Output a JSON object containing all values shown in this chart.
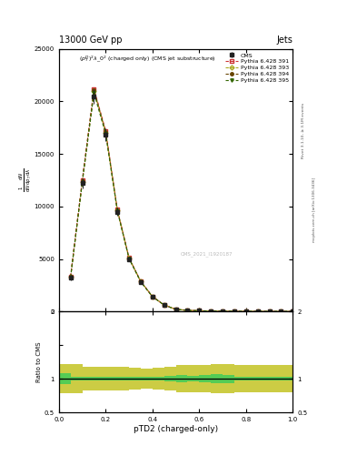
{
  "title_top": "13000 GeV pp",
  "title_right": "Jets",
  "plot_title": "$(p_T^D)^2\\lambda\\_0^2$ (charged only) (CMS jet substructure)",
  "watermark": "CMS_2021_I1920187",
  "rivet_label": "Rivet 3.1.10, ≥ 3.1M events",
  "mcplots_label": "mcplots.cern.ch [arXiv:1306.3436]",
  "xlabel": "pTD2 (charged-only)",
  "xlim": [
    0,
    1.0
  ],
  "ylim_main": [
    0,
    25000
  ],
  "ylim_ratio": [
    0.5,
    2.0
  ],
  "yticks_main": [
    0,
    5000,
    10000,
    15000,
    20000,
    25000
  ],
  "ytick_labels_main": [
    "0",
    "5000",
    "10000",
    "15000",
    "20000",
    "25000"
  ],
  "x_data": [
    0.05,
    0.1,
    0.15,
    0.2,
    0.25,
    0.3,
    0.35,
    0.4,
    0.45,
    0.5,
    0.55,
    0.6,
    0.65,
    0.7,
    0.75,
    0.8,
    0.85,
    0.9,
    0.95,
    1.0
  ],
  "cms_data": [
    3200,
    12200,
    20500,
    16800,
    9500,
    5000,
    2800,
    1400,
    600,
    200,
    100,
    70,
    40,
    25,
    15,
    10,
    7,
    5,
    3,
    2
  ],
  "cms_err": [
    250,
    450,
    700,
    600,
    380,
    220,
    130,
    80,
    45,
    20,
    15,
    10,
    8,
    6,
    5,
    4,
    3,
    2,
    1,
    1
  ],
  "py391_data": [
    3350,
    12500,
    21200,
    17200,
    9700,
    5100,
    2870,
    1430,
    615,
    205,
    105,
    72,
    42,
    26,
    16,
    11,
    8,
    5,
    3,
    2
  ],
  "py393_data": [
    3280,
    12350,
    21000,
    17000,
    9600,
    5050,
    2840,
    1415,
    608,
    202,
    103,
    71,
    41,
    25,
    15,
    10,
    7,
    5,
    3,
    2
  ],
  "py394_data": [
    3310,
    12420,
    21100,
    17100,
    9650,
    5080,
    2855,
    1420,
    610,
    204,
    104,
    72,
    42,
    26,
    16,
    11,
    8,
    5,
    3,
    2
  ],
  "py395_data": [
    3240,
    12280,
    20800,
    16900,
    9560,
    5020,
    2820,
    1405,
    602,
    200,
    102,
    70,
    40,
    25,
    15,
    10,
    7,
    5,
    3,
    2
  ],
  "ratio_green_lo": [
    0.92,
    0.97,
    0.97,
    0.97,
    0.97,
    0.97,
    0.975,
    0.975,
    0.97,
    0.96,
    0.95,
    0.96,
    0.95,
    0.93,
    0.94,
    0.97,
    0.97,
    0.97,
    0.97,
    0.97
  ],
  "ratio_green_hi": [
    1.08,
    1.03,
    1.03,
    1.03,
    1.03,
    1.03,
    1.025,
    1.025,
    1.03,
    1.04,
    1.05,
    1.04,
    1.05,
    1.07,
    1.06,
    1.03,
    1.03,
    1.03,
    1.03,
    1.03
  ],
  "ratio_yellow_lo": [
    0.78,
    0.82,
    0.82,
    0.82,
    0.82,
    0.84,
    0.85,
    0.85,
    0.84,
    0.82,
    0.8,
    0.82,
    0.8,
    0.78,
    0.8,
    0.82,
    0.8,
    0.82,
    0.8,
    0.8
  ],
  "ratio_yellow_hi": [
    1.22,
    1.18,
    1.18,
    1.18,
    1.18,
    1.16,
    1.15,
    1.15,
    1.16,
    1.18,
    1.2,
    1.18,
    1.2,
    1.22,
    1.2,
    1.18,
    1.2,
    1.18,
    1.2,
    1.2
  ],
  "cms_color": "#222222",
  "py391_color": "#cc3333",
  "py393_color": "#aaaa22",
  "py394_color": "#664400",
  "py395_color": "#336600",
  "green_band": "#55cc55",
  "yellow_band": "#cccc44",
  "bg_color": "#ffffff"
}
